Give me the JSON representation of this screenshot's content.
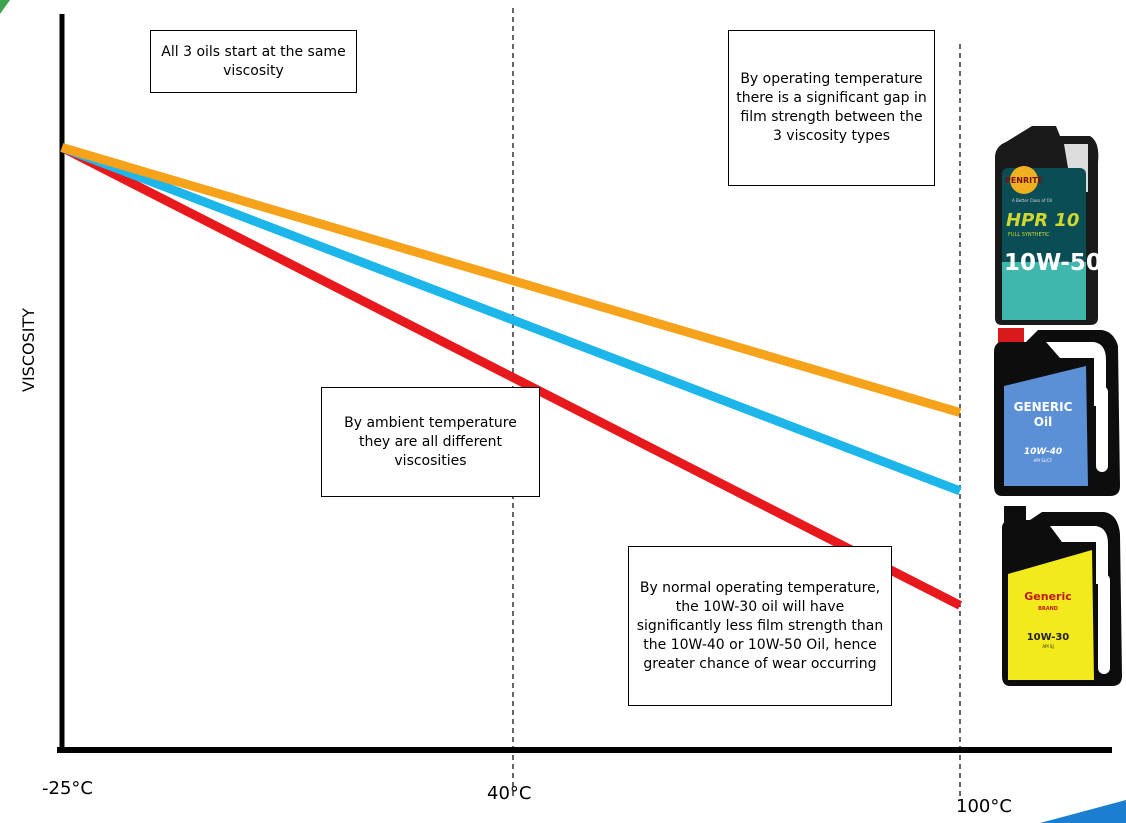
{
  "chart_data": {
    "type": "line",
    "ylabel": "VISCOSITY",
    "xlabel": "",
    "x_ticks": [
      "-25°C",
      "40°C",
      "100°C"
    ],
    "x": [
      -25,
      100
    ],
    "series": [
      {
        "name": "10W-50",
        "color": "#F7A21B",
        "values": [
          1.0,
          0.56
        ]
      },
      {
        "name": "10W-40",
        "color": "#1DB6EA",
        "values": [
          1.0,
          0.43
        ]
      },
      {
        "name": "10W-30",
        "color": "#E8191C",
        "values": [
          1.0,
          0.24
        ]
      }
    ],
    "ylim": [
      0,
      1.2
    ],
    "reference_lines_x": [
      "40°C",
      "100°C"
    ],
    "annotations": [
      "All 3 oils start at the same viscosity",
      "By operating temperature there is a significant gap in film strength between the 3 viscosity types",
      "By ambient temperature they are all different viscosities",
      "By normal operating temperature, the 10W-30 oil will have significantly less film strength than the 10W-40 or 10W-50 Oil, hence greater chance of wear occurring"
    ]
  },
  "bottles": {
    "penrite": {
      "brand": "PENRITE",
      "tagline": "A Better Class of Oil",
      "product": "HPR 10",
      "sub": "FULL SYNTHETIC",
      "grade": "10W-50",
      "icon": "oil-bottle-icon",
      "color": "#1a1a1a"
    },
    "generic40": {
      "line1": "GENERIC",
      "line2": "Oil",
      "grade": "10W-40",
      "spec": "API SL/CF",
      "icon": "oil-can-icon",
      "color": "#5b8fd6"
    },
    "generic30": {
      "line1": "Generic",
      "line2": "BRAND",
      "grade": "10W-30",
      "spec": "API SJ",
      "icon": "oil-can-icon",
      "color": "#f2ea1b"
    }
  }
}
